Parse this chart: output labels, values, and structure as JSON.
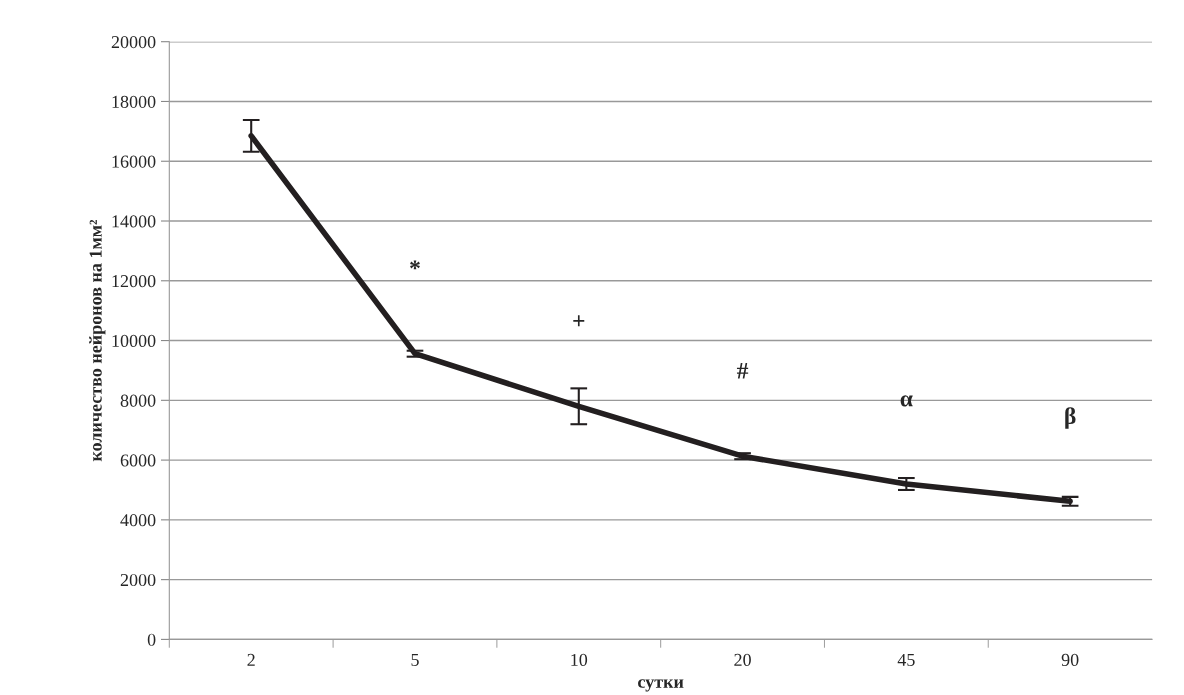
{
  "chart_data": {
    "type": "line",
    "xlabel": "сутки",
    "ylabel": "количество нейронов на 1мм²",
    "categories": [
      "2",
      "5",
      "10",
      "20",
      "45",
      "90"
    ],
    "series": [
      {
        "color": "#231f20",
        "values": [
          16850,
          9560,
          7800,
          6130,
          5200,
          4620
        ],
        "errors": [
          530,
          100,
          600,
          100,
          200,
          150
        ]
      }
    ],
    "annotations": [
      "*",
      "+",
      "#",
      "α",
      "β"
    ],
    "ylim": [
      0,
      20000
    ],
    "yticks": [
      0,
      2000,
      4000,
      6000,
      8000,
      10000,
      12000,
      14000,
      16000,
      18000,
      20000
    ],
    "grid": "y",
    "marker": "none",
    "line_style": "solid",
    "legend": false
  }
}
